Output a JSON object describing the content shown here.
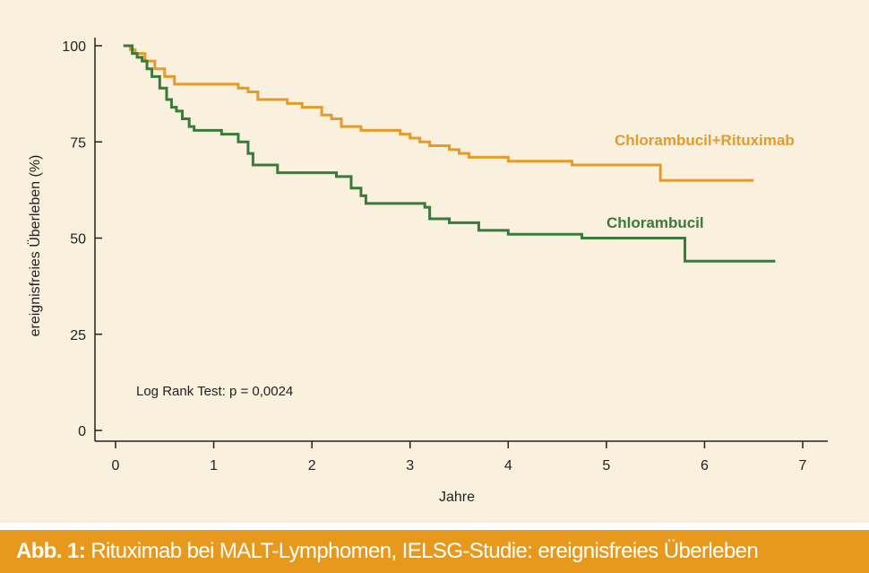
{
  "caption": {
    "lead": "Abb. 1:",
    "text": " Rituximab bei MALT-Lymphomen, IELSG-Studie: ereignisfreies Überleben"
  },
  "annotation": "Log Rank Test: p = 0,0024",
  "colors": {
    "background": "#f9f1dd",
    "caption_bar": "#e7991e",
    "chlorambucil_rituximab": "#e59a2a",
    "chlorambucil": "#3a7a3a",
    "axis": "#222222"
  },
  "chart_data": {
    "type": "line",
    "step": true,
    "xlabel": "Jahre",
    "ylabel": "ereignisfreies Überleben (%)",
    "xlim": [
      0,
      7
    ],
    "ylim": [
      0,
      100
    ],
    "xticks": [
      "0",
      "1",
      "2",
      "3",
      "4",
      "5",
      "6",
      "7"
    ],
    "yticks": [
      "0",
      "25",
      "50",
      "75",
      "100"
    ],
    "grid": false,
    "series": [
      {
        "name": "Chlorambucil+Rituximab",
        "color": "#e59a2a",
        "x": [
          0.08,
          0.15,
          0.2,
          0.3,
          0.4,
          0.5,
          0.6,
          1.0,
          1.25,
          1.35,
          1.45,
          1.75,
          1.9,
          2.1,
          2.2,
          2.3,
          2.5,
          2.7,
          2.9,
          3.0,
          3.1,
          3.2,
          3.4,
          3.5,
          3.6,
          4.0,
          4.4,
          4.65,
          5.0,
          5.55,
          5.9,
          6.5
        ],
        "y": [
          100,
          99,
          98,
          96,
          94,
          92,
          90,
          90,
          89,
          88,
          86,
          85,
          84,
          82,
          81,
          79,
          78,
          78,
          77,
          76,
          75,
          74,
          73,
          72,
          71,
          70,
          70,
          69,
          69,
          65,
          65,
          65
        ]
      },
      {
        "name": "Chlorambucil",
        "color": "#3a7a3a",
        "x": [
          0.08,
          0.17,
          0.22,
          0.27,
          0.32,
          0.37,
          0.45,
          0.52,
          0.57,
          0.62,
          0.68,
          0.75,
          0.8,
          1.08,
          1.25,
          1.35,
          1.4,
          1.65,
          2.0,
          2.25,
          2.4,
          2.5,
          2.55,
          3.0,
          3.15,
          3.2,
          3.4,
          3.7,
          4.0,
          4.5,
          4.75,
          5.5,
          5.8,
          6.72
        ],
        "y": [
          100,
          98,
          97,
          96,
          94,
          92,
          89,
          86,
          84,
          83,
          81,
          79,
          78,
          77,
          75,
          72,
          69,
          67,
          67,
          66,
          63,
          61,
          59,
          59,
          58,
          55,
          54,
          52,
          51,
          51,
          50,
          50,
          44,
          44
        ]
      }
    ]
  }
}
